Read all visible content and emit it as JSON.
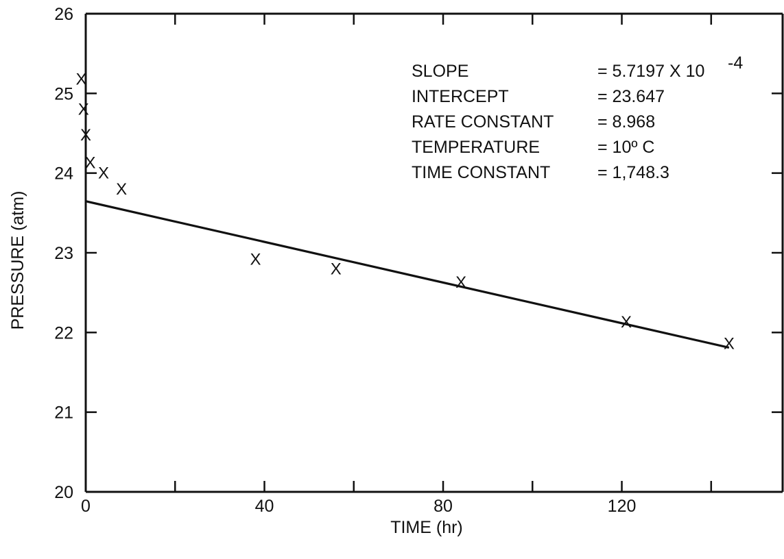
{
  "chart_data": {
    "type": "scatter",
    "x": [
      -1,
      -0.5,
      0,
      1,
      4,
      8,
      38,
      56,
      84,
      121,
      144
    ],
    "y": [
      25.18,
      24.8,
      24.48,
      24.13,
      24.0,
      23.8,
      22.92,
      22.8,
      22.63,
      22.13,
      21.86
    ],
    "marker": "X",
    "fit_line": {
      "x": [
        0,
        144
      ],
      "y": [
        23.647,
        21.81
      ]
    },
    "xlabel": "TIME (hr)",
    "ylabel": "PRESSURE (atm)",
    "xlim": [
      0,
      156
    ],
    "ylim": [
      20,
      26
    ],
    "x_tick_labels": [
      "0",
      "40",
      "80",
      "120"
    ],
    "x_tick_values": [
      0,
      40,
      80,
      120
    ],
    "x_minor_ticks": [
      20,
      60,
      100,
      140
    ],
    "y_tick_labels": [
      "20",
      "21",
      "22",
      "23",
      "24",
      "25",
      "26"
    ],
    "y_tick_values": [
      20,
      21,
      22,
      23,
      24,
      25,
      26
    ],
    "grid": false,
    "annotations": [
      {
        "label": "SLOPE",
        "value": "= 5.7197 X 10",
        "superscript": "-4"
      },
      {
        "label": "INTERCEPT",
        "value": "= 23.647",
        "superscript": ""
      },
      {
        "label": "RATE CONSTANT",
        "value": "= 8.968",
        "superscript": ""
      },
      {
        "label": "TEMPERATURE",
        "value": "= 10º C",
        "superscript": ""
      },
      {
        "label": "TIME CONSTANT",
        "value": "= 1,748.3",
        "superscript": ""
      }
    ],
    "colors": {
      "axis": "#111111",
      "marker": "#111111",
      "fit": "#111111"
    }
  }
}
